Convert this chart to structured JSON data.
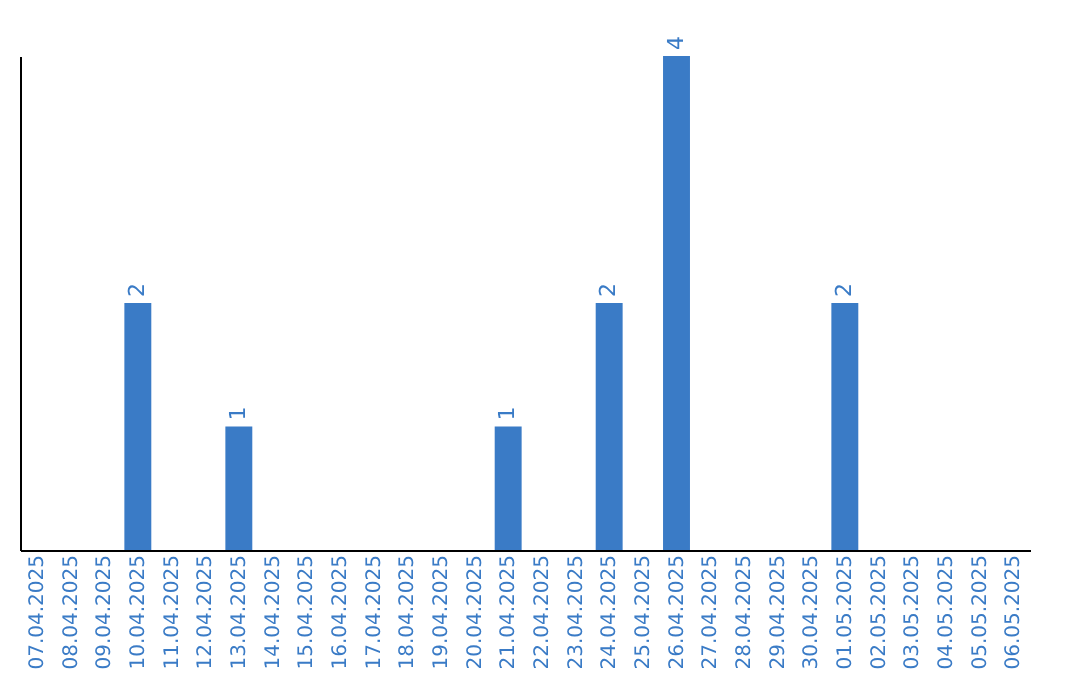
{
  "chart_data": {
    "type": "bar",
    "categories": [
      "07.04.2025",
      "08.04.2025",
      "09.04.2025",
      "10.04.2025",
      "11.04.2025",
      "12.04.2025",
      "13.04.2025",
      "14.04.2025",
      "15.04.2025",
      "16.04.2025",
      "17.04.2025",
      "18.04.2025",
      "19.04.2025",
      "20.04.2025",
      "21.04.2025",
      "22.04.2025",
      "23.04.2025",
      "24.04.2025",
      "25.04.2025",
      "26.04.2025",
      "27.04.2025",
      "28.04.2025",
      "29.04.2025",
      "30.04.2025",
      "01.05.2025",
      "02.05.2025",
      "03.05.2025",
      "04.05.2025",
      "05.05.2025",
      "06.05.2025"
    ],
    "values": [
      0,
      0,
      0,
      2,
      0,
      0,
      1,
      0,
      0,
      0,
      0,
      0,
      0,
      0,
      1,
      0,
      0,
      2,
      0,
      4,
      0,
      0,
      0,
      0,
      2,
      0,
      0,
      0,
      0,
      0
    ],
    "value_labels": [
      null,
      null,
      null,
      "2",
      null,
      null,
      "1",
      null,
      null,
      null,
      null,
      null,
      null,
      null,
      "1",
      null,
      null,
      "2",
      null,
      "4",
      null,
      null,
      null,
      null,
      "2",
      null,
      null,
      null,
      null,
      null
    ],
    "color": "#3a7bc6",
    "grid": false,
    "tick_labels": "x"
  }
}
